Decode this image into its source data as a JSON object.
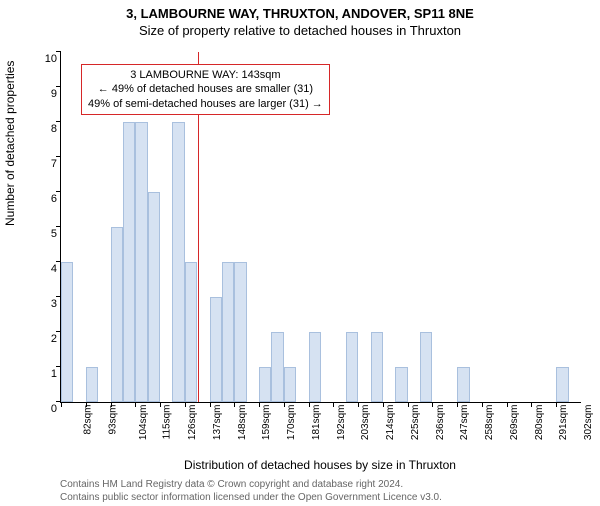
{
  "title": "3, LAMBOURNE WAY, THRUXTON, ANDOVER, SP11 8NE",
  "subtitle": "Size of property relative to detached houses in Thruxton",
  "ylabel": "Number of detached properties",
  "xlabel": "Distribution of detached houses by size in Thruxton",
  "credits_line1": "Contains HM Land Registry data © Crown copyright and database right 2024.",
  "credits_line2": "Contains public sector information licensed under the Open Government Licence v3.0.",
  "chart": {
    "type": "histogram",
    "ylim": [
      0,
      10
    ],
    "ytick_step": 1,
    "bar_color": "#d6e2f2",
    "bar_border_color": "#a9c0de",
    "reference_line_color": "#d62728",
    "reference_x_raw": 143,
    "x_tick_start": 82,
    "x_tick_step": 11,
    "x_tick_count": 21,
    "x_unit": "sqm",
    "annotation": {
      "line1": "3 LAMBOURNE WAY: 143sqm",
      "line2": "← 49% of detached houses are smaller (31)",
      "line3": "49% of semi-detached houses are larger (31) →"
    },
    "bars": [
      {
        "h": 4
      },
      {
        "h": 0
      },
      {
        "h": 1
      },
      {
        "h": 0
      },
      {
        "h": 5
      },
      {
        "h": 8
      },
      {
        "h": 8
      },
      {
        "h": 6
      },
      {
        "h": 0
      },
      {
        "h": 8
      },
      {
        "h": 4
      },
      {
        "h": 0
      },
      {
        "h": 3
      },
      {
        "h": 4
      },
      {
        "h": 4
      },
      {
        "h": 0
      },
      {
        "h": 1
      },
      {
        "h": 2
      },
      {
        "h": 1
      },
      {
        "h": 0
      },
      {
        "h": 2
      },
      {
        "h": 0
      },
      {
        "h": 0
      },
      {
        "h": 2
      },
      {
        "h": 0
      },
      {
        "h": 2
      },
      {
        "h": 0
      },
      {
        "h": 1
      },
      {
        "h": 0
      },
      {
        "h": 2
      },
      {
        "h": 0
      },
      {
        "h": 0
      },
      {
        "h": 1
      },
      {
        "h": 0
      },
      {
        "h": 0
      },
      {
        "h": 0
      },
      {
        "h": 0
      },
      {
        "h": 0
      },
      {
        "h": 0
      },
      {
        "h": 0
      },
      {
        "h": 1
      },
      {
        "h": 0
      }
    ]
  }
}
